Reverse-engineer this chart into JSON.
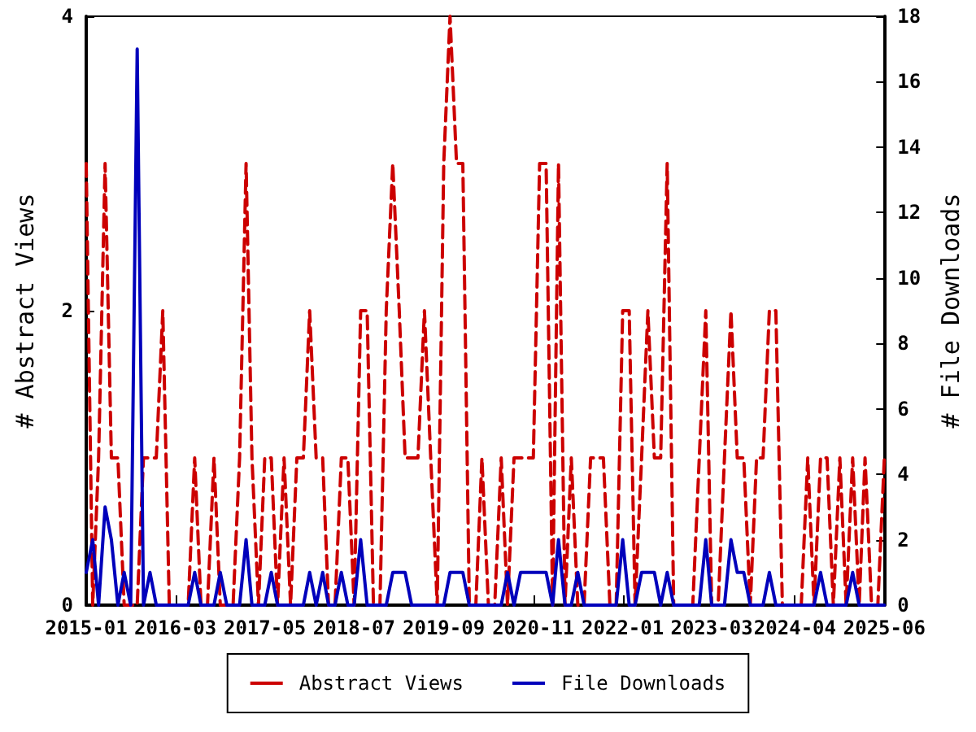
{
  "chart_data": {
    "type": "line",
    "ylabel": "# Abstract Views",
    "y2label": "# File Downloads",
    "x": [
      "2015-01",
      "2015-02",
      "2015-03",
      "2015-04",
      "2015-05",
      "2015-06",
      "2015-07",
      "2015-08",
      "2015-09",
      "2015-10",
      "2015-11",
      "2015-12",
      "2016-01",
      "2016-02",
      "2016-03",
      "2016-04",
      "2016-05",
      "2016-06",
      "2016-07",
      "2016-08",
      "2016-09",
      "2016-10",
      "2016-11",
      "2016-12",
      "2017-01",
      "2017-02",
      "2017-03",
      "2017-04",
      "2017-05",
      "2017-06",
      "2017-07",
      "2017-08",
      "2017-09",
      "2017-10",
      "2017-11",
      "2017-12",
      "2018-01",
      "2018-02",
      "2018-03",
      "2018-04",
      "2018-05",
      "2018-06",
      "2018-07",
      "2018-08",
      "2018-09",
      "2018-10",
      "2018-11",
      "2018-12",
      "2019-01",
      "2019-02",
      "2019-03",
      "2019-04",
      "2019-05",
      "2019-06",
      "2019-07",
      "2019-08",
      "2019-09",
      "2019-10",
      "2019-11",
      "2019-12",
      "2020-01",
      "2020-02",
      "2020-03",
      "2020-04",
      "2020-05",
      "2020-06",
      "2020-07",
      "2020-08",
      "2020-09",
      "2020-10",
      "2020-11",
      "2020-12",
      "2021-01",
      "2021-02",
      "2021-03",
      "2021-04",
      "2021-05",
      "2021-06",
      "2021-07",
      "2021-08",
      "2021-09",
      "2021-10",
      "2021-11",
      "2021-12",
      "2022-01",
      "2022-02",
      "2022-03",
      "2022-04",
      "2022-05",
      "2022-06",
      "2022-07",
      "2022-08",
      "2022-09",
      "2022-10",
      "2022-11",
      "2022-12",
      "2023-01",
      "2023-02",
      "2023-03",
      "2023-04",
      "2023-05",
      "2023-06",
      "2023-07",
      "2023-08",
      "2023-09",
      "2023-10",
      "2023-11",
      "2023-12",
      "2024-01",
      "2024-02",
      "2024-03",
      "2024-04",
      "2024-05",
      "2024-06",
      "2024-07",
      "2024-08",
      "2024-09",
      "2024-10",
      "2024-11",
      "2024-12",
      "2025-01",
      "2025-02",
      "2025-03",
      "2025-04",
      "2025-05",
      "2025-06"
    ],
    "series": [
      {
        "name": "Abstract Views",
        "color": "#cc0000",
        "line_style": "dashed",
        "values": [
          3,
          0,
          1,
          3,
          1,
          1,
          0,
          0,
          0,
          1,
          1,
          1,
          2,
          0,
          0,
          0,
          0,
          1,
          0,
          0,
          1,
          0,
          0,
          0,
          1,
          3,
          1,
          0,
          1,
          1,
          0,
          1,
          0,
          1,
          1,
          2,
          1,
          1,
          0,
          0,
          1,
          1,
          0,
          2,
          2,
          0,
          0,
          2,
          3,
          2,
          1,
          1,
          1,
          2,
          1,
          0,
          3,
          4,
          3,
          3,
          0,
          0,
          1,
          0,
          0,
          1,
          0,
          1,
          1,
          1,
          1,
          3,
          3,
          0,
          3,
          0,
          1,
          0,
          0,
          1,
          1,
          1,
          0,
          0,
          2,
          2,
          0,
          1,
          2,
          1,
          1,
          3,
          0,
          0,
          0,
          0,
          1,
          2,
          0,
          0,
          1,
          2,
          1,
          1,
          0,
          1,
          1,
          2,
          2,
          0,
          0,
          0,
          0,
          1,
          0,
          1,
          1,
          0,
          1,
          0,
          1,
          0,
          1,
          0,
          0,
          1
        ]
      },
      {
        "name": "File Downloads",
        "color": "#0000bb",
        "line_style": "solid",
        "axis": "y2",
        "values": [
          1,
          2,
          0,
          3,
          2,
          0,
          1,
          0,
          17,
          0,
          1,
          0,
          0,
          0,
          0,
          0,
          0,
          1,
          0,
          0,
          0,
          1,
          0,
          0,
          0,
          2,
          0,
          0,
          0,
          1,
          0,
          0,
          0,
          0,
          0,
          1,
          0,
          1,
          0,
          0,
          1,
          0,
          0,
          2,
          0,
          0,
          0,
          0,
          1,
          1,
          1,
          0,
          0,
          0,
          0,
          0,
          0,
          1,
          1,
          1,
          0,
          0,
          0,
          0,
          0,
          0,
          1,
          0,
          1,
          1,
          1,
          1,
          1,
          0,
          2,
          0,
          0,
          1,
          0,
          0,
          0,
          0,
          0,
          0,
          2,
          0,
          0,
          1,
          1,
          1,
          0,
          1,
          0,
          0,
          0,
          0,
          0,
          2,
          0,
          0,
          0,
          2,
          1,
          1,
          0,
          0,
          0,
          1,
          0,
          0,
          0,
          0,
          0,
          0,
          0,
          1,
          0,
          0,
          0,
          0,
          1,
          0,
          0,
          0,
          0,
          0
        ]
      }
    ],
    "xlim": [
      "2015-01",
      "2025-06"
    ],
    "xticks": [
      "2015-01",
      "2016-03",
      "2017-05",
      "2018-07",
      "2019-09",
      "2020-11",
      "2022-01",
      "2023-03",
      "2024-04",
      "2025-06"
    ],
    "ylim": [
      0,
      4
    ],
    "yticks": [
      0,
      2,
      4
    ],
    "y2lim": [
      0,
      18
    ],
    "y2ticks": [
      0,
      2,
      4,
      6,
      8,
      10,
      12,
      14,
      16,
      18
    ],
    "grid": false,
    "legend": "bottom",
    "marker": "none"
  }
}
